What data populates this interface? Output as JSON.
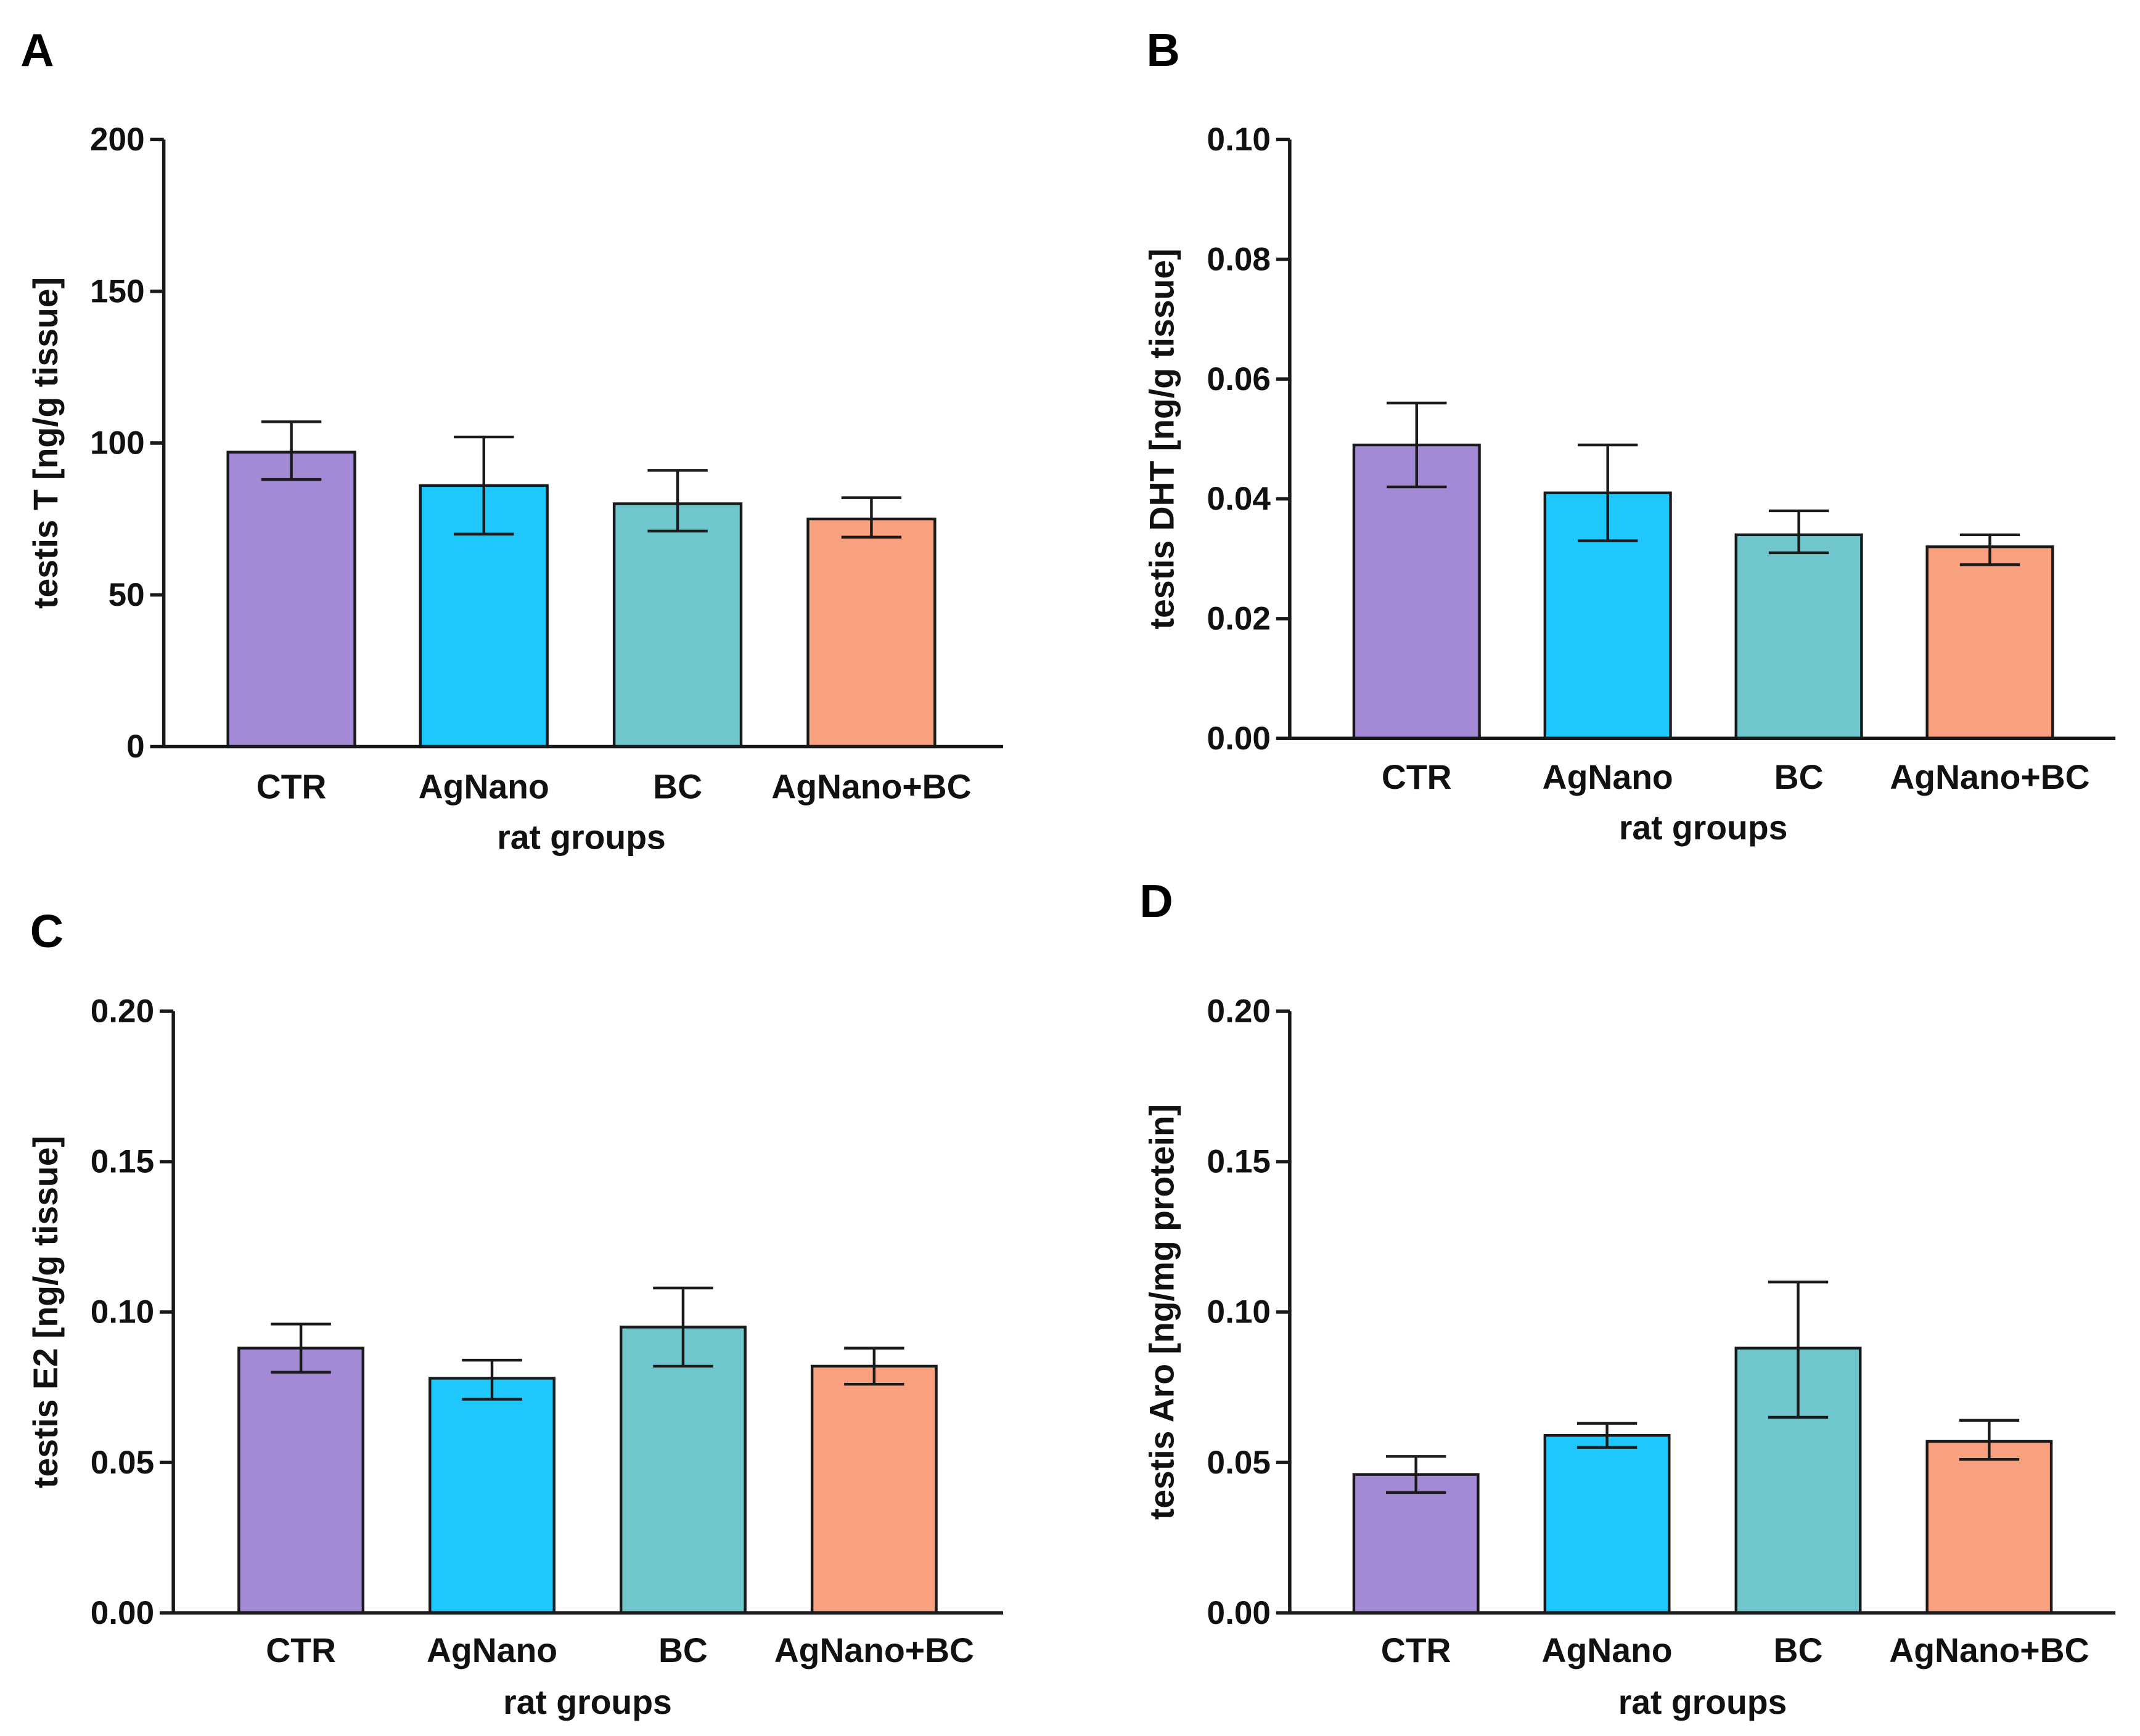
{
  "chart_data": [
    {
      "type": "bar",
      "panel": "A",
      "categories": [
        "CTR",
        "AgNano",
        "BC",
        "AgNano+BC"
      ],
      "values": [
        97,
        86,
        80,
        75
      ],
      "error_low": [
        88,
        70,
        71,
        69
      ],
      "error_high": [
        107,
        102,
        91,
        82
      ],
      "ylabel": "testis T [ng/g tissue]",
      "xlabel": "rat groups",
      "ylim": [
        0,
        200
      ],
      "yticks": [
        0,
        50,
        100,
        150,
        200
      ],
      "ytick_labels": [
        "0",
        "50",
        "100",
        "150",
        "200"
      ]
    },
    {
      "type": "bar",
      "panel": "B",
      "categories": [
        "CTR",
        "AgNano",
        "BC",
        "AgNano+BC"
      ],
      "values": [
        0.049,
        0.041,
        0.034,
        0.032
      ],
      "error_low": [
        0.042,
        0.033,
        0.031,
        0.029
      ],
      "error_high": [
        0.056,
        0.049,
        0.038,
        0.034
      ],
      "ylabel": "testis DHT [ng/g tissue]",
      "xlabel": "rat groups",
      "ylim": [
        0,
        0.1
      ],
      "yticks": [
        0,
        0.02,
        0.04,
        0.06,
        0.08,
        0.1
      ],
      "ytick_labels": [
        "0.00",
        "0.02",
        "0.04",
        "0.06",
        "0.08",
        "0.10"
      ]
    },
    {
      "type": "bar",
      "panel": "C",
      "categories": [
        "CTR",
        "AgNano",
        "BC",
        "AgNano+BC"
      ],
      "values": [
        0.088,
        0.078,
        0.095,
        0.082
      ],
      "error_low": [
        0.08,
        0.071,
        0.082,
        0.076
      ],
      "error_high": [
        0.096,
        0.084,
        0.108,
        0.088
      ],
      "ylabel": "testis E2 [ng/g tissue]",
      "xlabel": "rat groups",
      "ylim": [
        0,
        0.2
      ],
      "yticks": [
        0,
        0.05,
        0.1,
        0.15,
        0.2
      ],
      "ytick_labels": [
        "0.00",
        "0.05",
        "0.10",
        "0.15",
        "0.20"
      ]
    },
    {
      "type": "bar",
      "panel": "D",
      "categories": [
        "CTR",
        "AgNano",
        "BC",
        "AgNano+BC"
      ],
      "values": [
        0.046,
        0.059,
        0.088,
        0.057
      ],
      "error_low": [
        0.04,
        0.055,
        0.065,
        0.051
      ],
      "error_high": [
        0.052,
        0.063,
        0.11,
        0.064
      ],
      "ylabel": "testis Aro [ng/mg protein]",
      "xlabel": "rat groups",
      "ylim": [
        0,
        0.2
      ],
      "yticks": [
        0,
        0.05,
        0.1,
        0.15,
        0.2
      ],
      "ytick_labels": [
        "0.00",
        "0.05",
        "0.10",
        "0.15",
        "0.20"
      ]
    }
  ],
  "colors": [
    "#a48ad4",
    "#1ec8fc",
    "#6fc7cd",
    "#f9a07f"
  ]
}
